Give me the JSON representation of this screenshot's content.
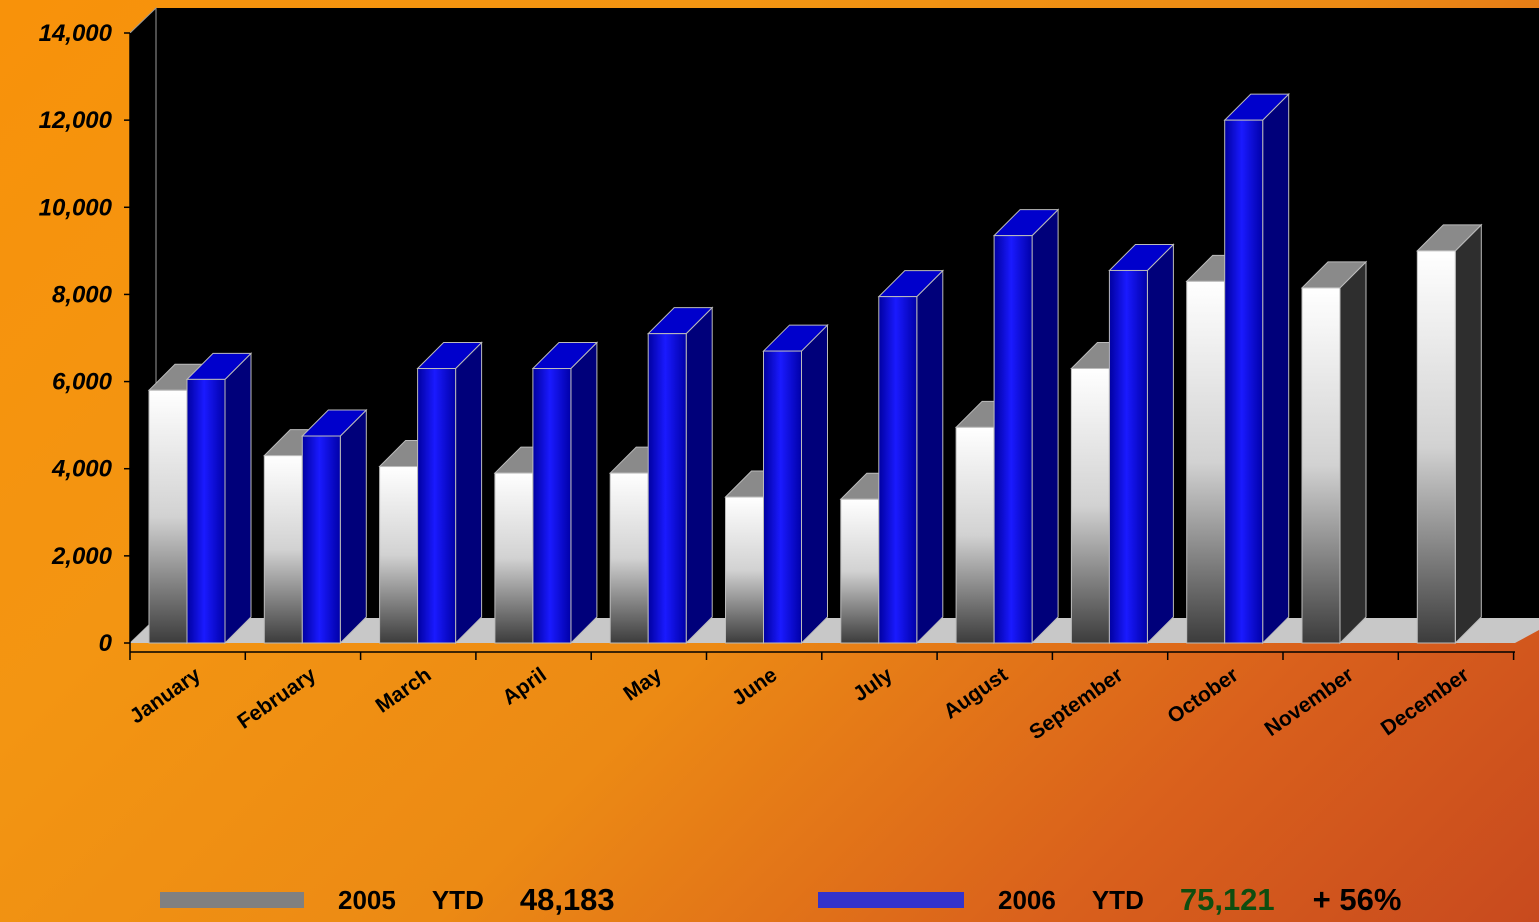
{
  "chart_data": {
    "type": "bar",
    "categories": [
      "January",
      "February",
      "March",
      "April",
      "May",
      "June",
      "July",
      "August",
      "September",
      "October",
      "November",
      "December"
    ],
    "series": [
      {
        "name": "2005",
        "values": [
          5800,
          4300,
          4050,
          3900,
          3900,
          3350,
          3300,
          4950,
          6300,
          8300,
          8150,
          9000
        ],
        "color": "#c0c0c0"
      },
      {
        "name": "2006",
        "values": [
          6050,
          4750,
          6300,
          6300,
          7100,
          6700,
          7950,
          9350,
          8550,
          12000,
          null,
          null
        ],
        "color": "#0000e0"
      }
    ],
    "y_ticks": [
      "0",
      "2,000",
      "4,000",
      "6,000",
      "8,000",
      "10,000",
      "12,000",
      "14,000"
    ],
    "ylim": [
      0,
      14000
    ],
    "plot_background": "#000000",
    "grid": false,
    "bar_style": "3d",
    "legend_position": "bottom"
  },
  "legend": {
    "items": [
      {
        "year": "2005",
        "ytd_label": "YTD",
        "ytd_value": "48,183",
        "swatch_color": "#808080",
        "value_color": "#000000"
      },
      {
        "year": "2006",
        "ytd_label": "YTD",
        "ytd_value": "75,121",
        "change": "+ 56%",
        "swatch_color": "#3333cc",
        "value_color": "#0f4d0f"
      }
    ]
  }
}
